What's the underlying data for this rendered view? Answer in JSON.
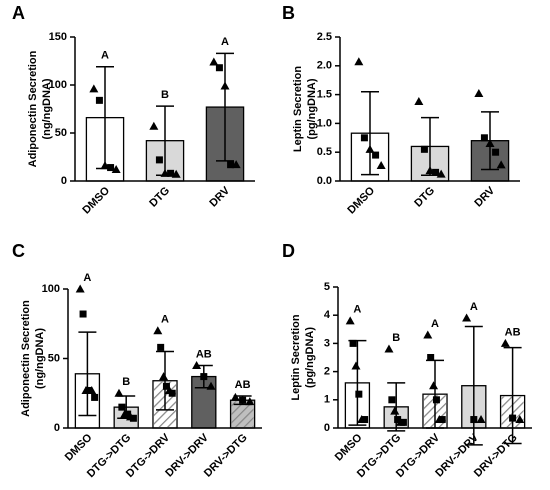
{
  "chart_data": [
    {
      "type": "bar",
      "panel": "A",
      "ylabel": [
        "Adiponectin Secretion",
        "(ng/ngDNA)"
      ],
      "categories": [
        "DMSO",
        "DTG",
        "DRV"
      ],
      "values": [
        66,
        42,
        77
      ],
      "errors": [
        53,
        36,
        56
      ],
      "colors": [
        "#ffffff",
        "#d9d9d9",
        "#606060"
      ],
      "hatch": [
        false,
        false,
        false
      ],
      "letters": [
        "A",
        "B",
        "A"
      ],
      "points": [
        [
          96,
          84,
          16,
          14,
          12
        ],
        [
          57,
          22,
          8,
          8,
          7
        ],
        [
          124,
          118,
          99,
          17,
          17
        ]
      ],
      "ylim": [
        0,
        150
      ],
      "yticks": [
        0,
        50,
        100,
        150
      ]
    },
    {
      "type": "bar",
      "panel": "B",
      "ylabel": [
        "Leptin Secretion",
        "(pg/ngDNA)"
      ],
      "categories": [
        "DMSO",
        "DTG",
        "DRV"
      ],
      "values": [
        0.83,
        0.6,
        0.7
      ],
      "errors": [
        0.72,
        0.5,
        0.5
      ],
      "colors": [
        "#ffffff",
        "#d9d9d9",
        "#606060"
      ],
      "hatch": [
        false,
        false,
        false
      ],
      "points": [
        [
          2.07,
          0.75,
          0.55,
          0.45,
          0.27
        ],
        [
          1.38,
          0.55,
          0.18,
          0.15,
          0.12
        ],
        [
          1.52,
          0.75,
          0.65,
          0.5,
          0.28
        ]
      ],
      "ylim": [
        0,
        2.5
      ],
      "yticks": [
        {
          "value": 0,
          "label": "0.0"
        },
        0.5,
        {
          "value": 1,
          "label": "1.0"
        },
        1.5,
        {
          "value": 2,
          "label": "2.0"
        },
        2.5
      ]
    },
    {
      "type": "bar",
      "panel": "C",
      "ylabel": [
        "Adiponectin Secretion",
        "(ng/ngDNA)"
      ],
      "categories": [
        "DMSO",
        "DTG->DTG",
        "DTG->DRV",
        "DRV->DRV",
        "DRV->DTG"
      ],
      "values": [
        39,
        15,
        34,
        37,
        20
      ],
      "errors": [
        30,
        8,
        21,
        8,
        3
      ],
      "colors": [
        "#ffffff",
        "#d9d9d9",
        "#ffffff",
        "#606060",
        "#bfbfbf"
      ],
      "hatch": [
        false,
        false,
        true,
        false,
        true
      ],
      "letters": [
        "A",
        "B",
        "A",
        "AB",
        "AB"
      ],
      "points": [
        [
          100,
          82,
          27,
          27,
          27,
          22
        ],
        [
          25,
          15,
          10,
          10,
          8,
          7
        ],
        [
          70,
          58,
          37,
          30,
          27,
          25
        ],
        [
          45,
          37,
          30
        ],
        [
          22,
          20,
          19
        ]
      ],
      "ylim": [
        0,
        100
      ],
      "yticks": [
        0,
        50,
        100
      ]
    },
    {
      "type": "bar",
      "panel": "D",
      "ylabel": [
        "Leptin Secretion",
        "(pg/ngDNA)"
      ],
      "categories": [
        "DMSO",
        "DTG->DTG",
        "DTG->DRV",
        "DRV->DRV",
        "DRV->DTG"
      ],
      "values": [
        1.6,
        0.75,
        1.2,
        1.5,
        1.15
      ],
      "errors": [
        1.5,
        0.85,
        1.2,
        2.1,
        1.7
      ],
      "colors": [
        "#ffffff",
        "#d9d9d9",
        "#ffffff",
        "#d9d9d9",
        "#ffffff"
      ],
      "hatch": [
        false,
        false,
        true,
        false,
        true
      ],
      "letters": [
        "A",
        "B",
        "A",
        "A",
        "AB"
      ],
      "points": [
        [
          3.8,
          3.0,
          2.2,
          1.2,
          0.3,
          0.3
        ],
        [
          2.8,
          1.0,
          0.6,
          0.3,
          0.2,
          0.2
        ],
        [
          3.3,
          2.5,
          1.5,
          1.0,
          0.3,
          0.3
        ],
        [
          3.9,
          0.3,
          0.3
        ],
        [
          3.0,
          0.35,
          0.3
        ]
      ],
      "ylim": [
        0,
        5
      ],
      "yticks": [
        0,
        1,
        2,
        3,
        4,
        5
      ]
    }
  ]
}
